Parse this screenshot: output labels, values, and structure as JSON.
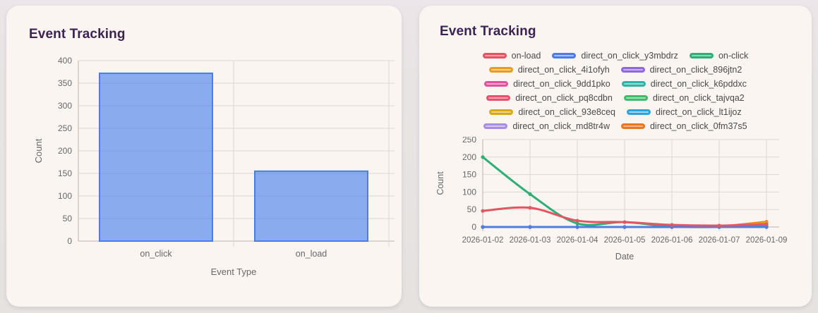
{
  "colors": {
    "page_bg": "#e8e4e3",
    "card_bg": "#faf5f0",
    "title": "#3d2352",
    "axis_text": "#686868",
    "grid": "#ded8d2",
    "axis_line": "#b9b3ae"
  },
  "cards": {
    "left_title": "Event Tracking",
    "right_title": "Event Tracking"
  },
  "chart_data": [
    {
      "type": "bar",
      "title": "Event Tracking",
      "categories": [
        "on_click",
        "on_load"
      ],
      "values": [
        372,
        155
      ],
      "xlabel": "Event Type",
      "ylabel": "Count",
      "ylim": [
        0,
        400
      ],
      "yticks": [
        0,
        50,
        100,
        150,
        200,
        250,
        300,
        350,
        400
      ],
      "grid": true,
      "bar_fill": "rgba(70,126,235,0.62)",
      "bar_border": "#4d7ce4",
      "legend_position": "none"
    },
    {
      "type": "line",
      "title": "Event Tracking",
      "x": [
        "2026-01-02",
        "2026-01-03",
        "2026-01-04",
        "2026-01-05",
        "2026-01-06",
        "2026-01-07",
        "2026-01-09"
      ],
      "xlabel": "Date",
      "ylabel": "Count",
      "ylim": [
        0,
        250
      ],
      "yticks": [
        0,
        50,
        100,
        150,
        200,
        250
      ],
      "grid": true,
      "legend_position": "top",
      "series": [
        {
          "name": "on-load",
          "color": "#e25563",
          "fill": "#f2a8af",
          "row": 0,
          "values": [
            46,
            55,
            18,
            14,
            6,
            4,
            8
          ]
        },
        {
          "name": "direct_on_click_y3mbdrz",
          "color": "#4d7ce4",
          "fill": "#abc5f1",
          "row": 0,
          "values": [
            0,
            0,
            0,
            0,
            0,
            0,
            0
          ]
        },
        {
          "name": "on-click",
          "color": "#2fae77",
          "fill": "#93d6b6",
          "row": 0,
          "values": [
            200,
            94,
            10,
            14,
            1,
            1,
            1
          ]
        },
        {
          "name": "direct_on_click_4i1ofyh",
          "color": "#eb9c1e",
          "fill": "#f6d194",
          "row": 1,
          "values": [
            0,
            0,
            0,
            0,
            0,
            0,
            0
          ]
        },
        {
          "name": "direct_on_click_896jtn2",
          "color": "#8f68dd",
          "fill": "#c9b4ef",
          "row": 1,
          "values": [
            0,
            0,
            0,
            0,
            0,
            0,
            0
          ]
        },
        {
          "name": "direct_on_click_9dd1pko",
          "color": "#e0519e",
          "fill": "#f1a8d0",
          "row": 2,
          "values": [
            0,
            0,
            0,
            0,
            0,
            0,
            0
          ]
        },
        {
          "name": "direct_on_click_k6pddxc",
          "color": "#2fb3a8",
          "fill": "#99dad4",
          "row": 2,
          "values": [
            0,
            0,
            0,
            0,
            0,
            0,
            3
          ]
        },
        {
          "name": "direct_on_click_pq8cdbn",
          "color": "#e8516e",
          "fill": "#f4a4b1",
          "row": 3,
          "values": [
            0,
            0,
            0,
            0,
            0,
            1,
            5
          ]
        },
        {
          "name": "direct_on_click_tajvqa2",
          "color": "#3fbb6c",
          "fill": "#a0deb3",
          "row": 3,
          "values": [
            0,
            0,
            0,
            0,
            0,
            0,
            1
          ]
        },
        {
          "name": "direct_on_click_93e8ceq",
          "color": "#d9a717",
          "fill": "#edd48d",
          "row": 4,
          "values": [
            0,
            0,
            0,
            0,
            0,
            1,
            12
          ]
        },
        {
          "name": "direct_on_click_lt1ijoz",
          "color": "#2ea3d8",
          "fill": "#a3d6ef",
          "row": 4,
          "values": [
            0,
            0,
            0,
            0,
            0,
            0,
            0
          ]
        },
        {
          "name": "direct_on_click_md8tr4w",
          "color": "#a98de2",
          "fill": "#d6c8f1",
          "row": 5,
          "values": [
            0,
            0,
            0,
            0,
            0,
            0,
            0
          ]
        },
        {
          "name": "direct_on_click_0fm37s5",
          "color": "#e87722",
          "fill": "#f4b286",
          "row": 5,
          "values": [
            0,
            0,
            0,
            0,
            0,
            2,
            15
          ]
        }
      ]
    }
  ]
}
